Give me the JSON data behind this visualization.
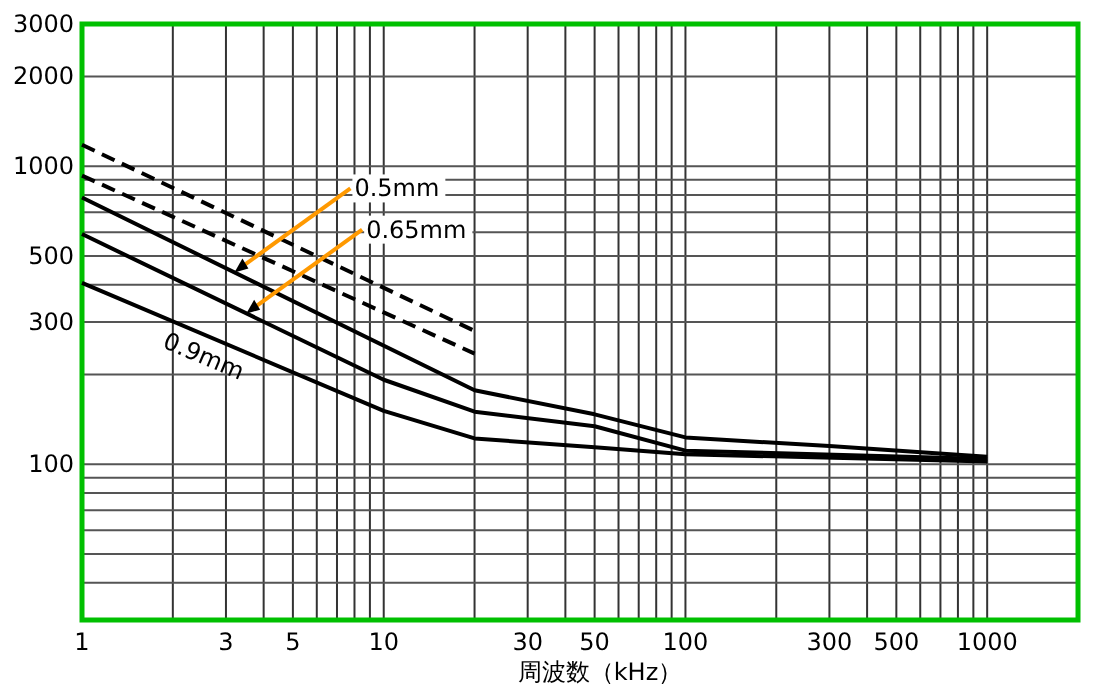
{
  "chart_data": {
    "type": "line",
    "xlabel": "周波数（kHz）",
    "log": "xy",
    "grid": true,
    "marker": "none",
    "xlim": [
      1,
      2000
    ],
    "ylim": [
      30,
      3000
    ],
    "xticks": [
      1,
      3,
      5,
      10,
      30,
      50,
      100,
      300,
      500,
      1000
    ],
    "yticks": [
      100,
      300,
      500,
      1000,
      2000,
      3000
    ],
    "series": [
      {
        "color": "#000000",
        "line_style": "dashed",
        "x": [
          1,
          20
        ],
        "values": [
          1180,
          280
        ]
      },
      {
        "color": "#000000",
        "line_style": "dashed",
        "x": [
          1,
          20
        ],
        "values": [
          930,
          235
        ]
      },
      {
        "color": "#000000",
        "line_style": "solid",
        "x": [
          1,
          20,
          50,
          100,
          300,
          1000
        ],
        "values": [
          785,
          177,
          147,
          123,
          115,
          106
        ]
      },
      {
        "color": "#000000",
        "line_style": "solid",
        "x": [
          1,
          10,
          20,
          50,
          100,
          1000
        ],
        "values": [
          592,
          192,
          150,
          134,
          111,
          104
        ]
      },
      {
        "name": "0.9mm",
        "color": "#000000",
        "line_style": "solid",
        "x": [
          1,
          10,
          20,
          50,
          100,
          1000
        ],
        "values": [
          406,
          151,
          122,
          114,
          108,
          102
        ]
      }
    ],
    "annotations": [
      {
        "text": "0.5mm",
        "x": 3.2,
        "y": 440
      },
      {
        "text": "0.65mm",
        "x": 3.5,
        "y": 320
      }
    ]
  }
}
